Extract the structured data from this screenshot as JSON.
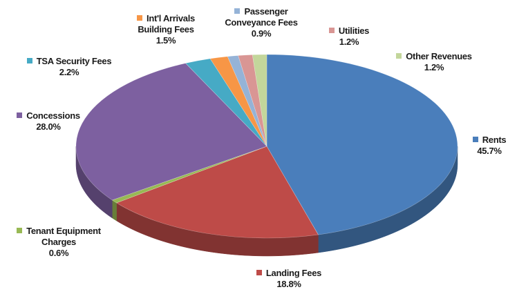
{
  "chart_data": {
    "type": "pie",
    "categories": [
      "Rents",
      "Landing Fees",
      "Tenant Equipment Charges",
      "Concessions",
      "TSA Security Fees",
      "Int'l Arrivals Building Fees",
      "Passenger Conveyance Fees",
      "Utilities",
      "Other Revenues"
    ],
    "values": [
      45.7,
      18.8,
      0.6,
      28.0,
      2.2,
      1.5,
      0.9,
      1.2,
      1.2
    ],
    "value_labels": [
      "45.7%",
      "18.8%",
      "0.6%",
      "28.0%",
      "2.2%",
      "1.5%",
      "0.9%",
      "1.2%",
      "1.2%"
    ],
    "colors": [
      "#4a7ebb",
      "#be4b48",
      "#98b954",
      "#7d60a0",
      "#46aac5",
      "#f79646",
      "#95b3d7",
      "#d99694",
      "#c3d69b"
    ]
  }
}
